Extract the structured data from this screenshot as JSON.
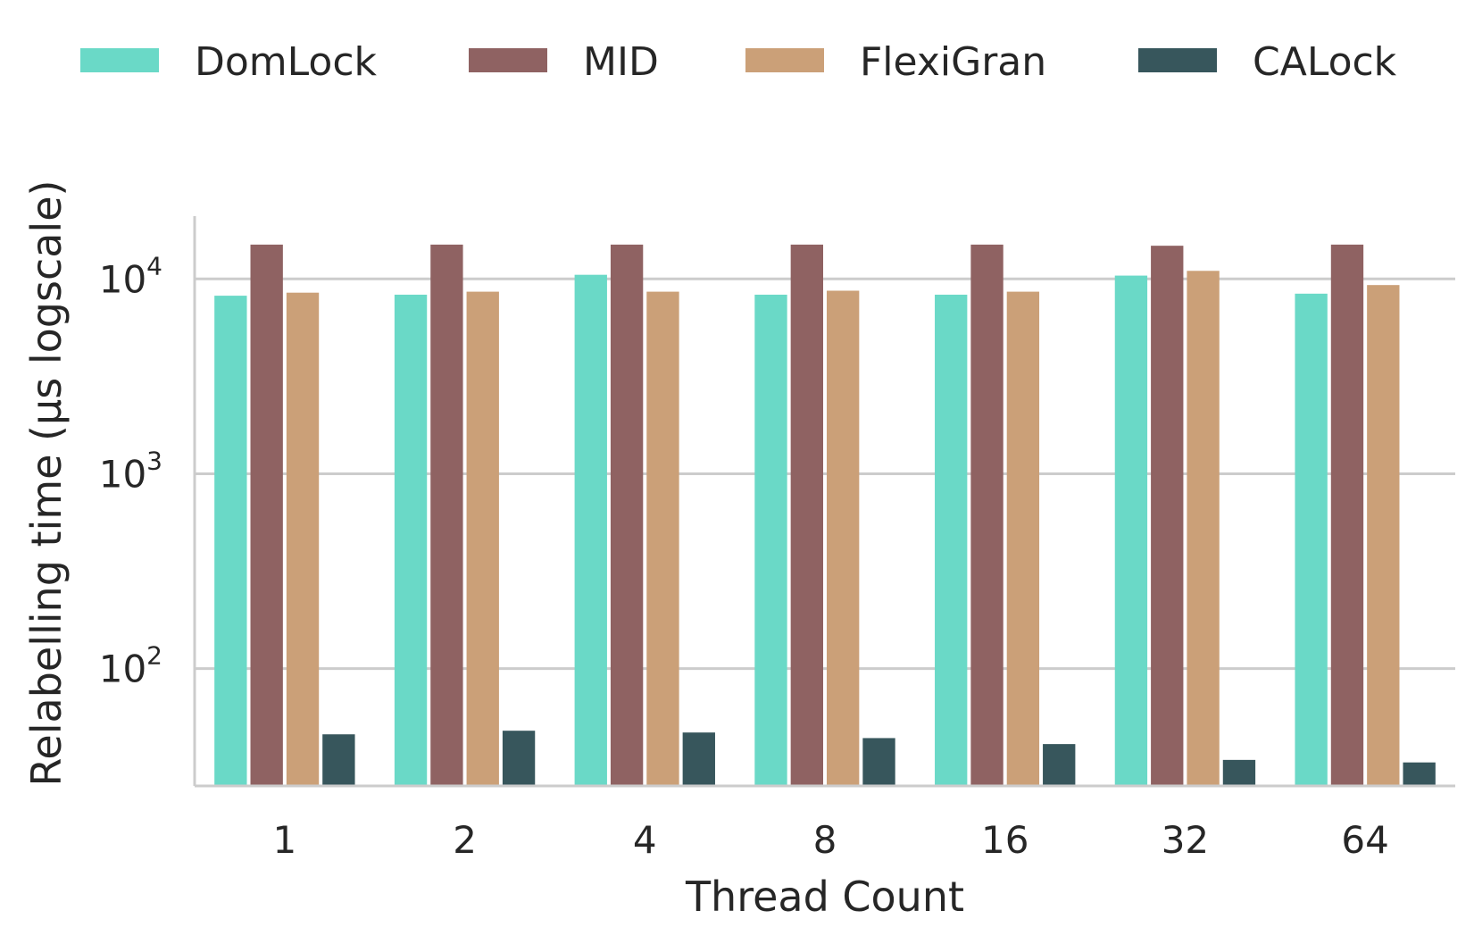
{
  "chart_data": {
    "type": "bar",
    "title": "",
    "xlabel": "Thread Count",
    "ylabel": "Relabelling time (μs logscale)",
    "yscale": "log",
    "ylim": [
      25,
      21000
    ],
    "categories": [
      "1",
      "2",
      "4",
      "8",
      "16",
      "32",
      "64"
    ],
    "series": [
      {
        "name": "DomLock",
        "color": "#6ad9c7",
        "values": [
          8200,
          8300,
          10500,
          8300,
          8300,
          10400,
          8400
        ]
      },
      {
        "name": "MID",
        "color": "#8f6262",
        "values": [
          15000,
          15000,
          15000,
          15000,
          15000,
          14800,
          15000
        ]
      },
      {
        "name": "FlexiGran",
        "color": "#cba078",
        "values": [
          8500,
          8600,
          8600,
          8700,
          8600,
          11000,
          9300
        ]
      },
      {
        "name": "CALock",
        "color": "#37565c",
        "values": [
          46,
          48,
          47,
          44,
          41,
          34,
          33
        ]
      }
    ],
    "yticks": [
      {
        "base": "10",
        "exp": "2",
        "value": 100
      },
      {
        "base": "10",
        "exp": "3",
        "value": 1000
      },
      {
        "base": "10",
        "exp": "4",
        "value": 10000
      }
    ],
    "grid": "horizontal",
    "legend_position": "top"
  }
}
